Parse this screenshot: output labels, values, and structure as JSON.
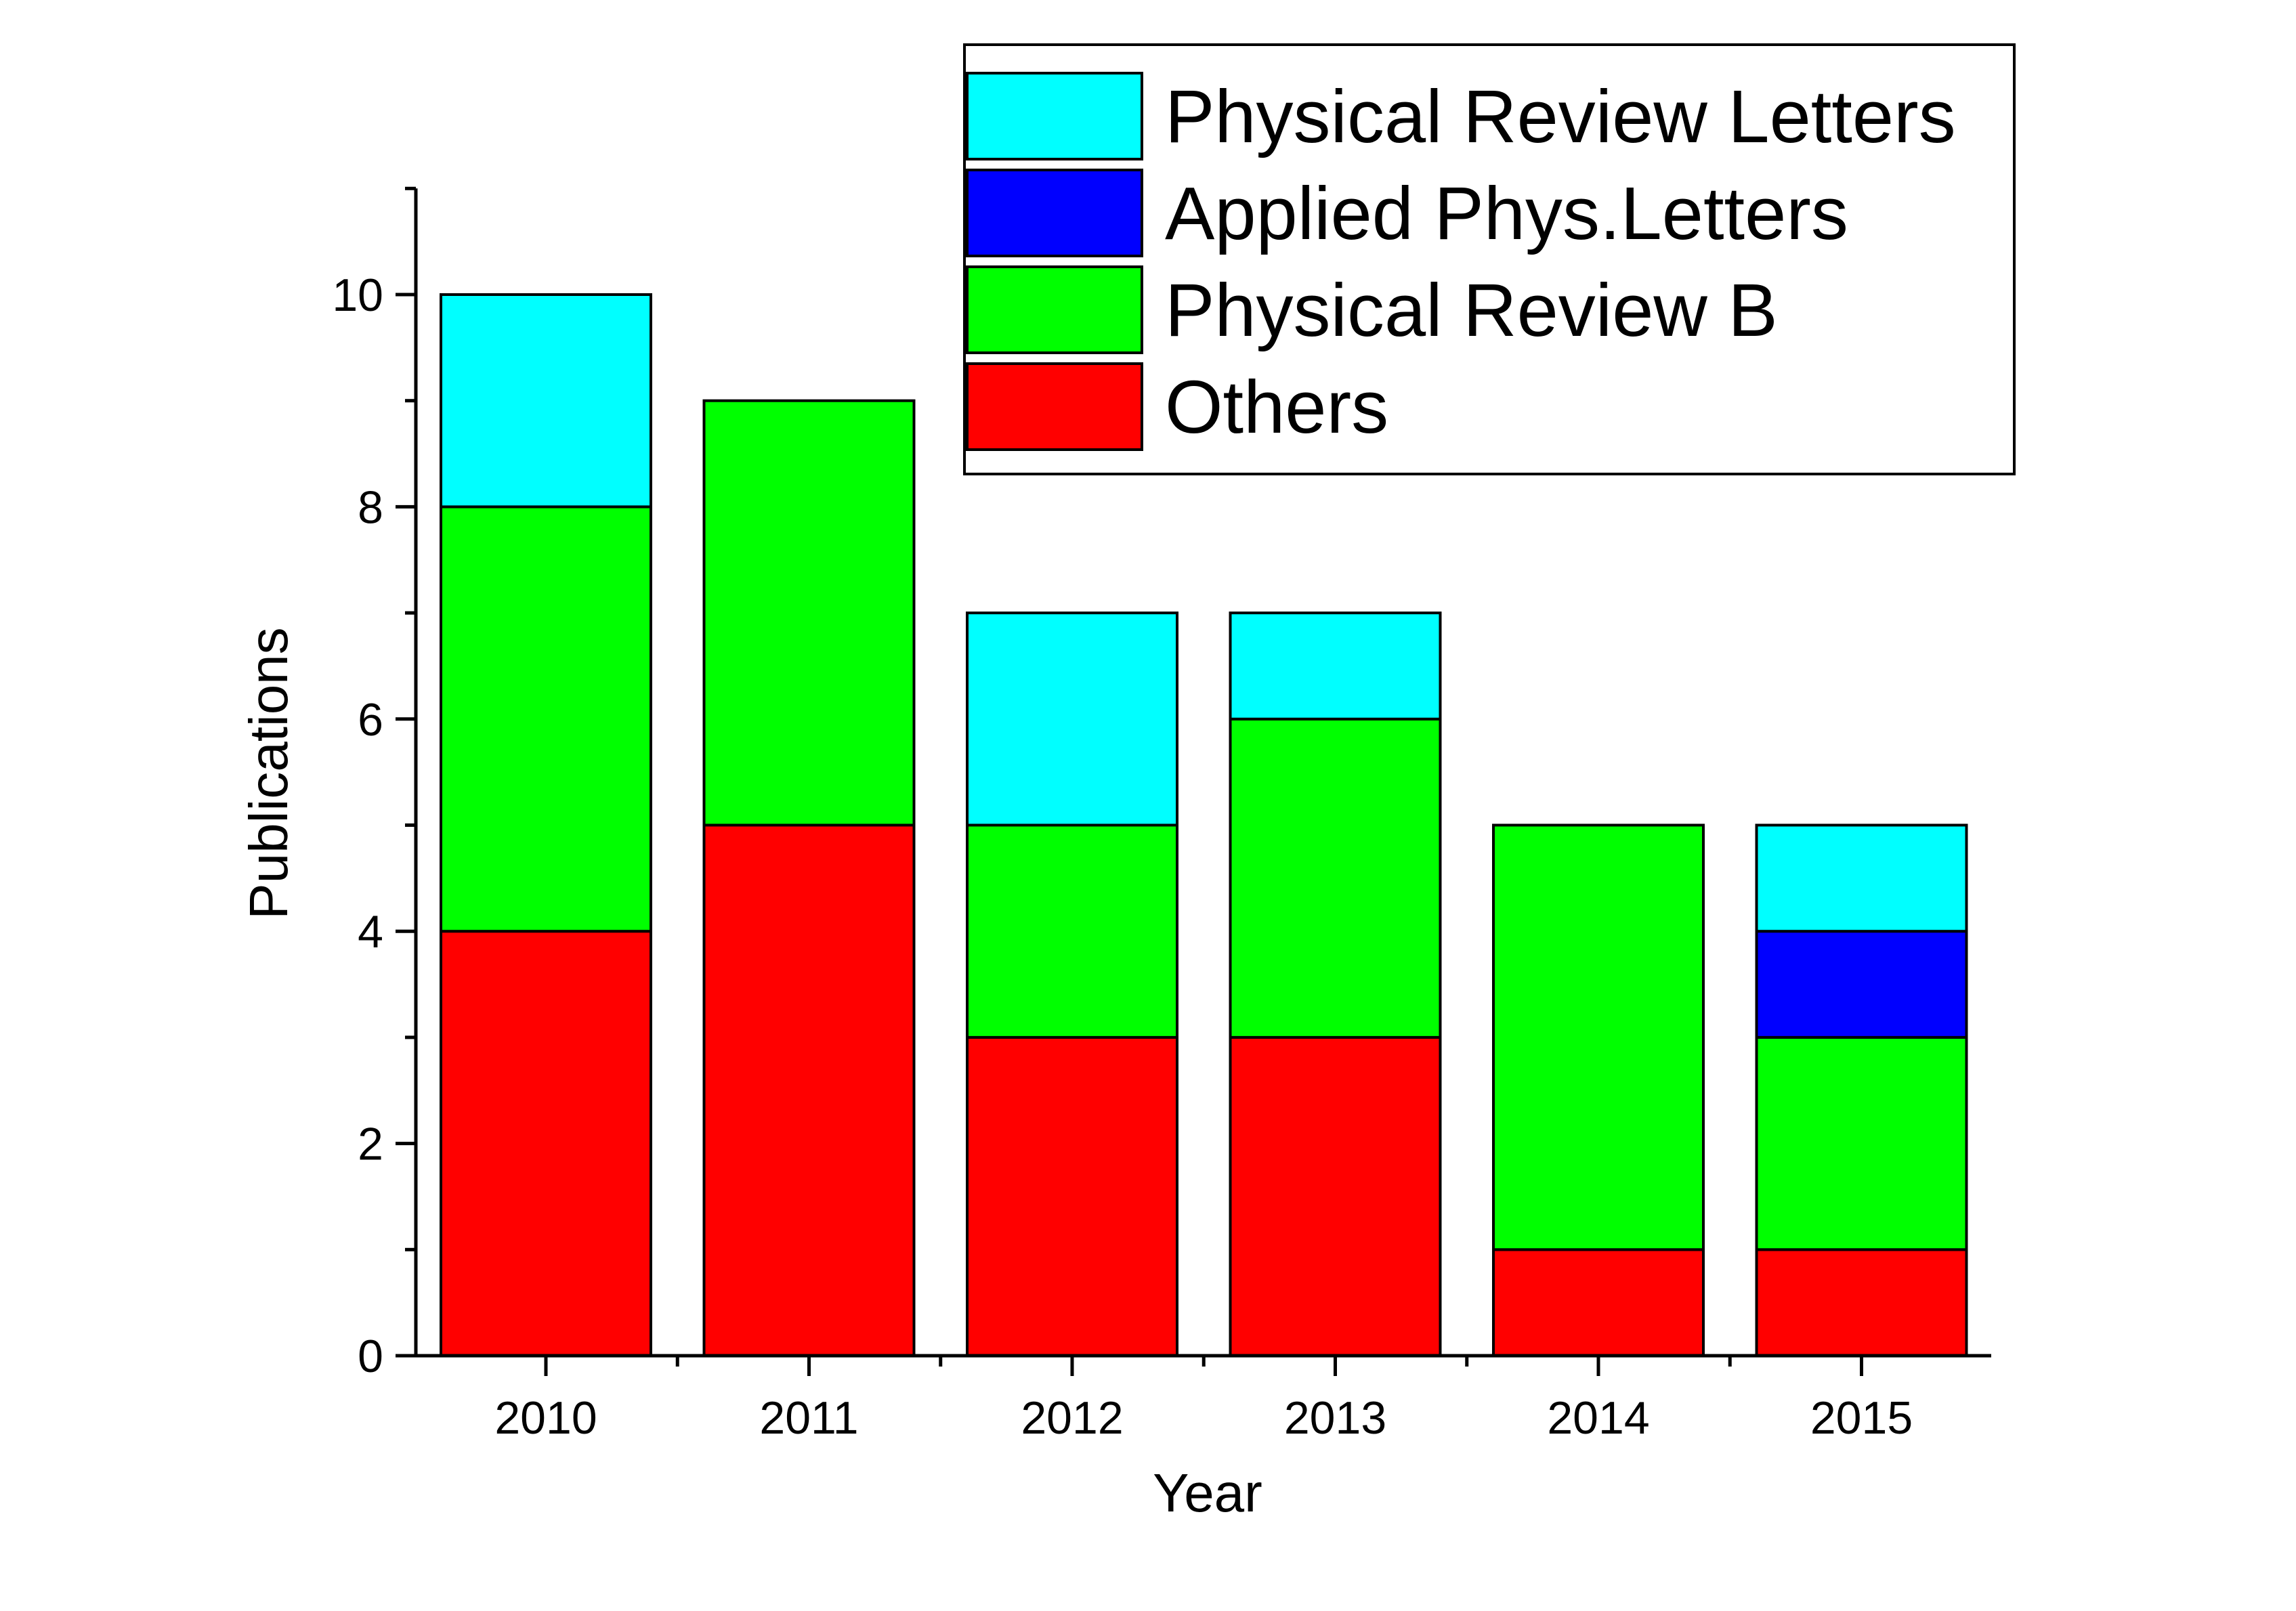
{
  "chart_data": {
    "type": "bar",
    "stacked": true,
    "xlabel": "Year",
    "ylabel": "Publications",
    "categories": [
      "2010",
      "2011",
      "2012",
      "2013",
      "2014",
      "2015"
    ],
    "ylim": [
      0,
      11
    ],
    "yticks": [
      0,
      2,
      4,
      6,
      8,
      10
    ],
    "y_minor_ticks": [
      1,
      3,
      5,
      7,
      9,
      11
    ],
    "grid": false,
    "legend_position": "top-right",
    "legend_order": [
      "Physical Review Letters",
      "Applied Phys.Letters",
      "Physical Review B",
      "Others"
    ],
    "series": [
      {
        "name": "Others",
        "color": "#ff0000",
        "values": [
          4,
          5,
          3,
          3,
          1,
          1
        ]
      },
      {
        "name": "Physical Review B",
        "color": "#00ff00",
        "values": [
          4,
          4,
          2,
          3,
          4,
          2
        ]
      },
      {
        "name": "Applied Phys.Letters",
        "color": "#0000ff",
        "values": [
          0,
          0,
          0,
          0,
          0,
          1
        ]
      },
      {
        "name": "Physical Review Letters",
        "color": "#00ffff",
        "values": [
          2,
          0,
          2,
          1,
          0,
          1
        ]
      }
    ]
  }
}
